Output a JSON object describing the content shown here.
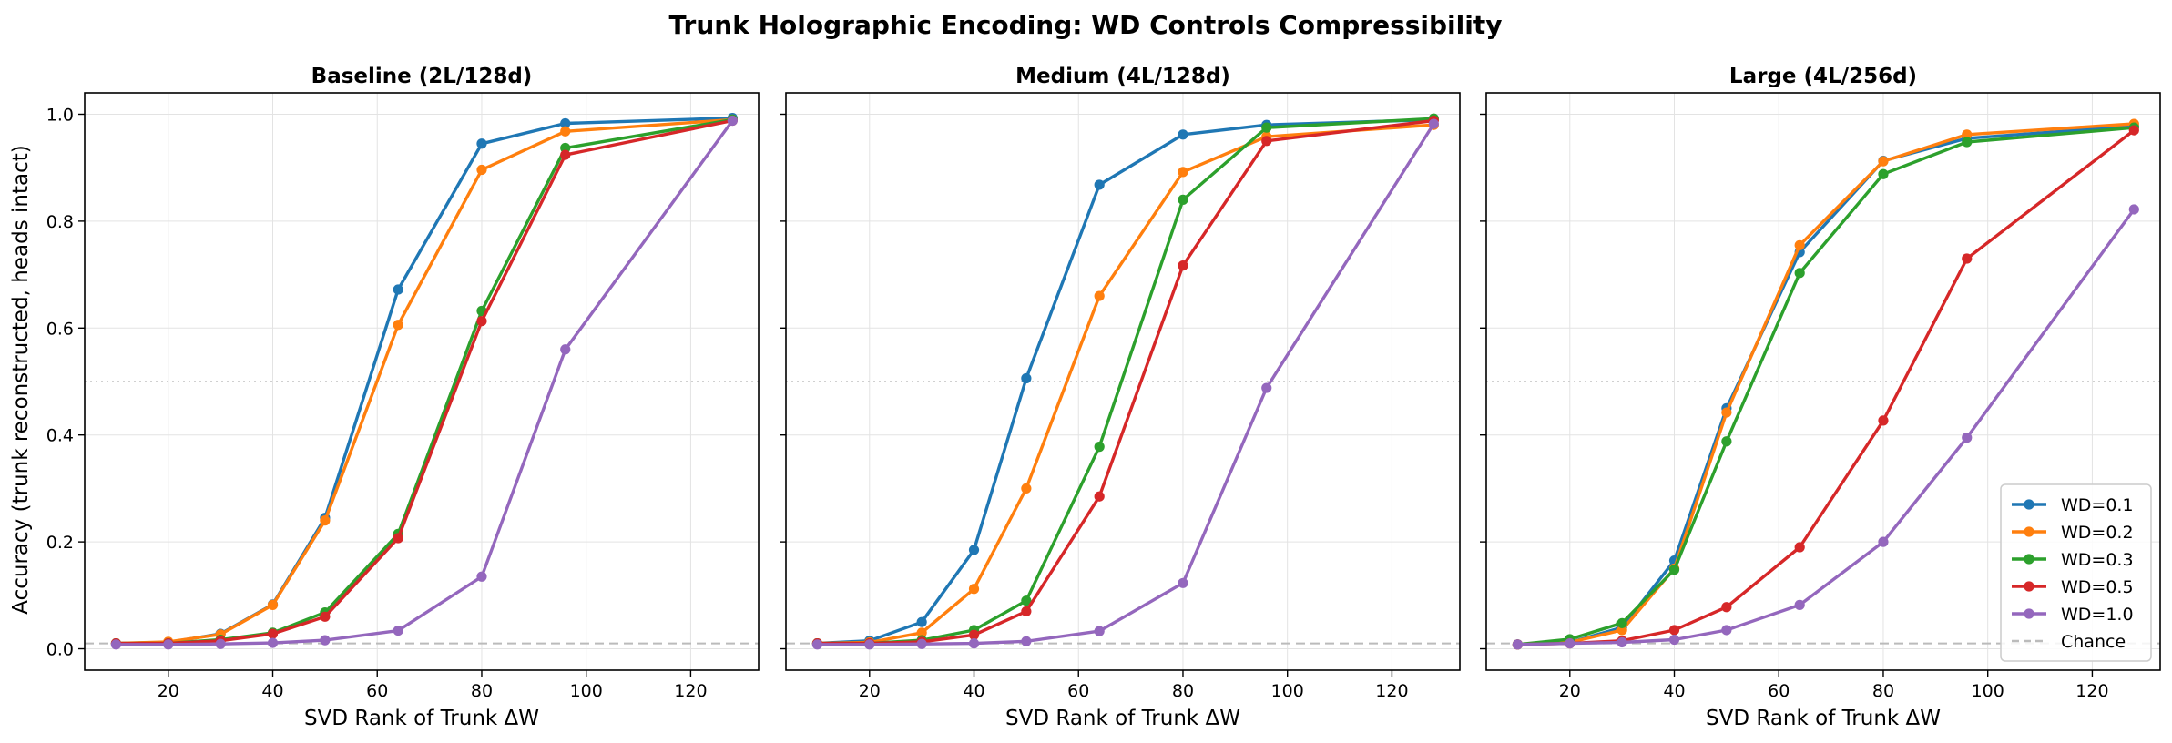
{
  "figure": {
    "title": "Trunk Holographic Encoding: WD Controls Compressibility",
    "ylabel": "Accuracy (trunk reconstructed, heads intact)"
  },
  "legend": {
    "placement": "lower-right, third panel",
    "entries": [
      {
        "label": "WD=0.1",
        "color": "#1f77b4"
      },
      {
        "label": "WD=0.2",
        "color": "#ff7f0e"
      },
      {
        "label": "WD=0.3",
        "color": "#2ca02c"
      },
      {
        "label": "WD=0.5",
        "color": "#d62728"
      },
      {
        "label": "WD=1.0",
        "color": "#9467bd"
      },
      {
        "label": "Chance",
        "color": "#bbbbbb"
      }
    ]
  },
  "chart_data": [
    {
      "type": "line",
      "title": "Baseline (2L/128d)",
      "xlabel": "SVD Rank of Trunk ΔW",
      "ylabel": "Accuracy (trunk reconstructed, heads intact)",
      "xlim": [
        4,
        133
      ],
      "ylim": [
        -0.04,
        1.04
      ],
      "xticks": [
        20,
        40,
        60,
        80,
        100,
        120
      ],
      "yticks": [
        0.0,
        0.2,
        0.4,
        0.6,
        0.8,
        1.0
      ],
      "ytick_labels": [
        "0.0",
        "0.2",
        "0.4",
        "0.6",
        "0.8",
        "1.0"
      ],
      "x": [
        10,
        20,
        30,
        40,
        50,
        64,
        80,
        96,
        128
      ],
      "reference_lines": [
        {
          "name": "Chance",
          "y": 0.01,
          "style": "dashed"
        },
        {
          "name": "half",
          "y": 0.5,
          "style": "dotted"
        }
      ],
      "series": [
        {
          "name": "WD=0.1",
          "color": "#1f77b4",
          "values": [
            0.01,
            0.012,
            0.028,
            0.083,
            0.245,
            0.672,
            0.945,
            0.983,
            0.993
          ]
        },
        {
          "name": "WD=0.2",
          "color": "#ff7f0e",
          "values": [
            0.01,
            0.013,
            0.027,
            0.082,
            0.24,
            0.606,
            0.896,
            0.968,
            0.99
          ]
        },
        {
          "name": "WD=0.3",
          "color": "#2ca02c",
          "values": [
            0.01,
            0.01,
            0.017,
            0.03,
            0.068,
            0.215,
            0.632,
            0.937,
            0.99
          ]
        },
        {
          "name": "WD=0.5",
          "color": "#d62728",
          "values": [
            0.01,
            0.01,
            0.015,
            0.028,
            0.06,
            0.207,
            0.613,
            0.924,
            0.988
          ]
        },
        {
          "name": "WD=1.0",
          "color": "#9467bd",
          "values": [
            0.008,
            0.008,
            0.009,
            0.011,
            0.016,
            0.034,
            0.135,
            0.56,
            0.988
          ]
        }
      ]
    },
    {
      "type": "line",
      "title": "Medium (4L/128d)",
      "xlabel": "SVD Rank of Trunk ΔW",
      "xlim": [
        4,
        133
      ],
      "ylim": [
        -0.04,
        1.04
      ],
      "xticks": [
        20,
        40,
        60,
        80,
        100,
        120
      ],
      "x": [
        10,
        20,
        30,
        40,
        50,
        64,
        80,
        96,
        128
      ],
      "reference_lines": [
        {
          "name": "Chance",
          "y": 0.01,
          "style": "dashed"
        },
        {
          "name": "half",
          "y": 0.5,
          "style": "dotted"
        }
      ],
      "series": [
        {
          "name": "WD=0.1",
          "color": "#1f77b4",
          "values": [
            0.01,
            0.015,
            0.05,
            0.185,
            0.506,
            0.868,
            0.962,
            0.98,
            0.99
          ]
        },
        {
          "name": "WD=0.2",
          "color": "#ff7f0e",
          "values": [
            0.01,
            0.012,
            0.03,
            0.112,
            0.3,
            0.66,
            0.892,
            0.958,
            0.98
          ]
        },
        {
          "name": "WD=0.3",
          "color": "#2ca02c",
          "values": [
            0.01,
            0.01,
            0.016,
            0.035,
            0.09,
            0.378,
            0.84,
            0.975,
            0.992
          ]
        },
        {
          "name": "WD=0.5",
          "color": "#d62728",
          "values": [
            0.01,
            0.01,
            0.013,
            0.026,
            0.07,
            0.285,
            0.717,
            0.95,
            0.988
          ]
        },
        {
          "name": "WD=1.0",
          "color": "#9467bd",
          "values": [
            0.008,
            0.008,
            0.009,
            0.01,
            0.014,
            0.033,
            0.123,
            0.488,
            0.982
          ]
        }
      ]
    },
    {
      "type": "line",
      "title": "Large (4L/256d)",
      "xlabel": "SVD Rank of Trunk ΔW",
      "xlim": [
        4,
        133
      ],
      "ylim": [
        -0.04,
        1.04
      ],
      "xticks": [
        20,
        40,
        60,
        80,
        100,
        120
      ],
      "x": [
        10,
        20,
        30,
        40,
        50,
        64,
        80,
        96,
        128
      ],
      "reference_lines": [
        {
          "name": "Chance",
          "y": 0.01,
          "style": "dashed"
        },
        {
          "name": "half",
          "y": 0.5,
          "style": "dotted"
        }
      ],
      "series": [
        {
          "name": "WD=0.1",
          "color": "#1f77b4",
          "values": [
            0.008,
            0.012,
            0.04,
            0.165,
            0.45,
            0.742,
            0.913,
            0.955,
            0.978
          ]
        },
        {
          "name": "WD=0.2",
          "color": "#ff7f0e",
          "values": [
            0.008,
            0.012,
            0.035,
            0.15,
            0.442,
            0.755,
            0.912,
            0.962,
            0.982
          ]
        },
        {
          "name": "WD=0.3",
          "color": "#2ca02c",
          "values": [
            0.008,
            0.018,
            0.048,
            0.148,
            0.388,
            0.703,
            0.888,
            0.948,
            0.975
          ]
        },
        {
          "name": "WD=0.5",
          "color": "#d62728",
          "values": [
            0.008,
            0.01,
            0.015,
            0.035,
            0.078,
            0.19,
            0.427,
            0.73,
            0.97
          ]
        },
        {
          "name": "WD=1.0",
          "color": "#9467bd",
          "values": [
            0.008,
            0.01,
            0.012,
            0.017,
            0.035,
            0.082,
            0.2,
            0.395,
            0.822
          ]
        }
      ]
    }
  ]
}
